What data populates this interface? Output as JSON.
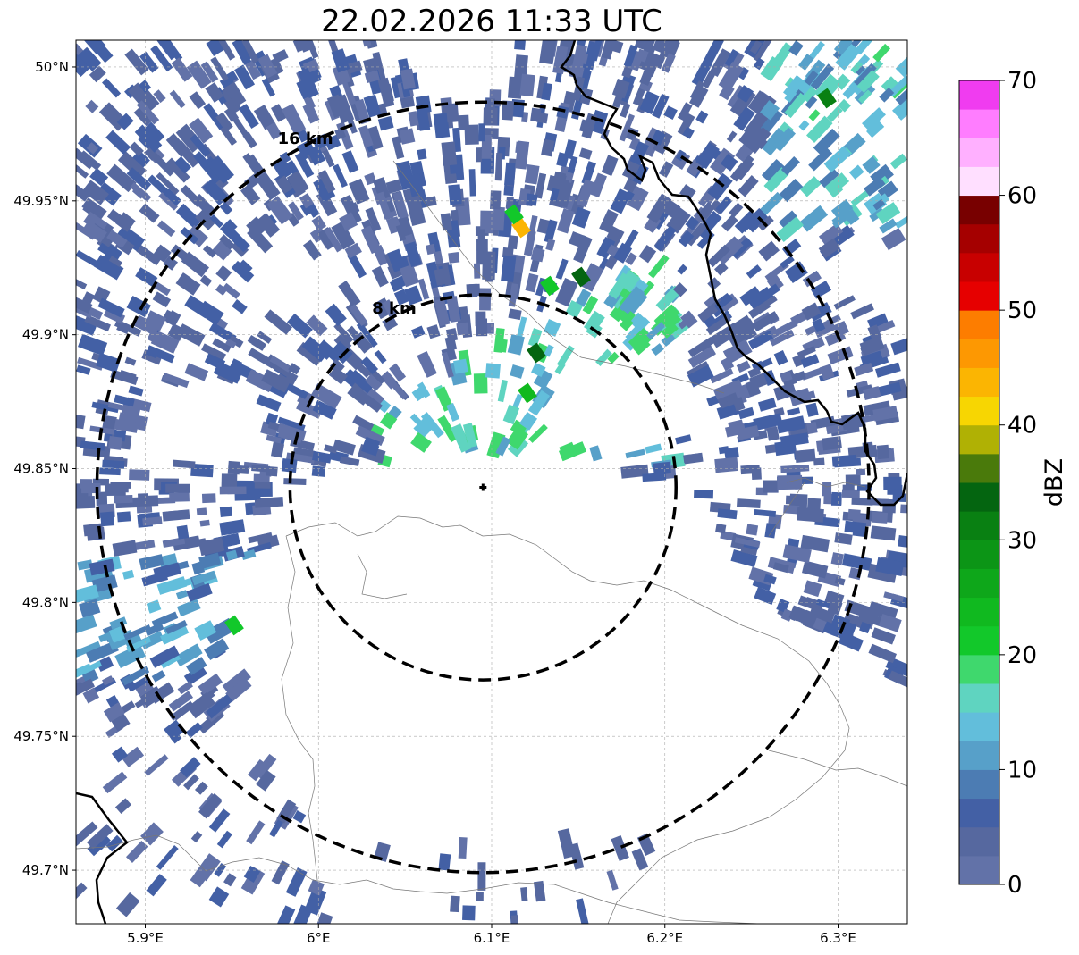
{
  "title": "22.02.2026 11:33 UTC",
  "map": {
    "lon_range": [
      5.86,
      6.34
    ],
    "lat_range": [
      49.68,
      50.01
    ],
    "center": {
      "lon": 6.095,
      "lat": 49.843
    },
    "lon_ticks": [
      {
        "value": 5.9,
        "label": "5.9°E"
      },
      {
        "value": 6.0,
        "label": "6°E"
      },
      {
        "value": 6.1,
        "label": "6.1°E"
      },
      {
        "value": 6.2,
        "label": "6.2°E"
      },
      {
        "value": 6.3,
        "label": "6.3°E"
      }
    ],
    "lat_ticks": [
      {
        "value": 49.7,
        "label": "49.7°N"
      },
      {
        "value": 49.75,
        "label": "49.75°N"
      },
      {
        "value": 49.8,
        "label": "49.8°N"
      },
      {
        "value": 49.85,
        "label": "49.85°N"
      },
      {
        "value": 49.9,
        "label": "49.9°N"
      },
      {
        "value": 49.95,
        "label": "49.95°N"
      },
      {
        "value": 50.0,
        "label": "50°N"
      }
    ],
    "range_rings": [
      {
        "radius_km": 8,
        "label": "8 km"
      },
      {
        "radius_km": 16,
        "label": "16 km"
      }
    ],
    "gridlines": true,
    "border_color": "#000000",
    "ring_color": "#000000"
  },
  "colorbar": {
    "label": "dBZ",
    "min": 0,
    "max": 70,
    "ticks": [
      {
        "value": 0,
        "label": "0"
      },
      {
        "value": 10,
        "label": "10"
      },
      {
        "value": 20,
        "label": "20"
      },
      {
        "value": 30,
        "label": "30"
      },
      {
        "value": 40,
        "label": "40"
      },
      {
        "value": 50,
        "label": "50"
      },
      {
        "value": 60,
        "label": "60"
      },
      {
        "value": 70,
        "label": "70"
      }
    ],
    "colors": [
      "#6272a8",
      "#56689f",
      "#4360a5",
      "#4c7cb3",
      "#57a0c9",
      "#62bedb",
      "#5fd4c0",
      "#3fd86d",
      "#12c82a",
      "#10b91f",
      "#0ea71a",
      "#0c9516",
      "#098012",
      "#046510",
      "#4a7a0b",
      "#b0b104",
      "#f7d602",
      "#fbb502",
      "#fd9802",
      "#fd7d00",
      "#e60000",
      "#c80000",
      "#a50000",
      "#780000",
      "#ffdfff",
      "#ffb0ff",
      "#ff7dff",
      "#f03cf0"
    ]
  }
}
